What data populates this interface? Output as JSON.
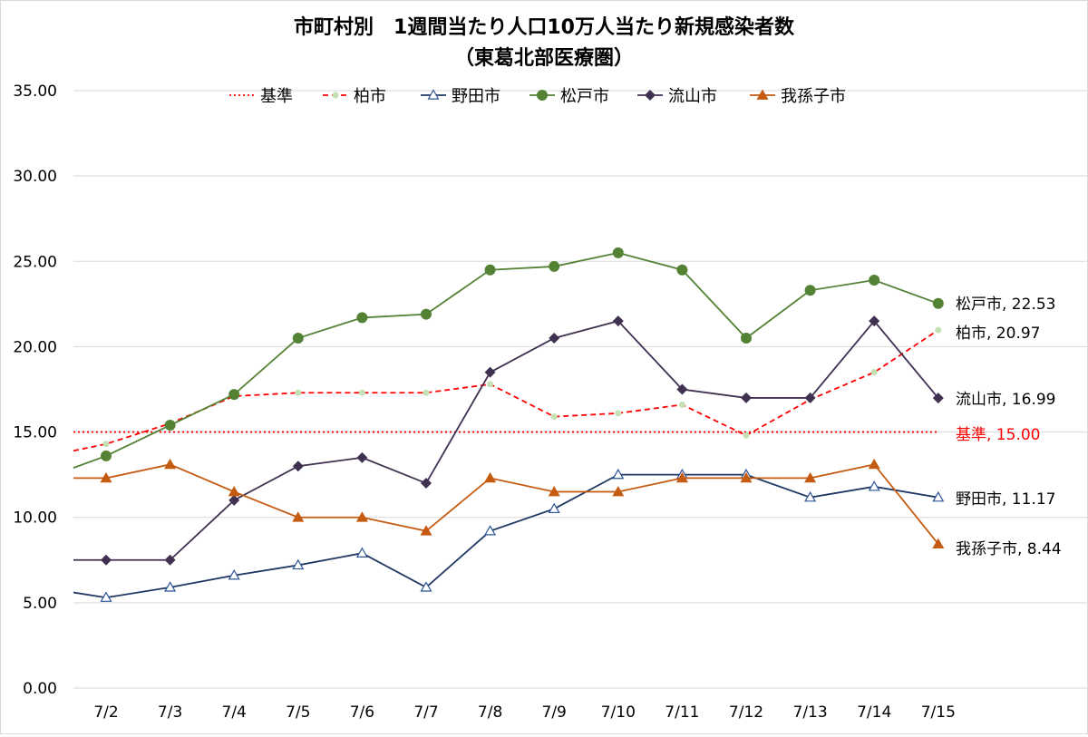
{
  "chart_data": {
    "type": "line",
    "title": "市町村別　1週間当たり人口10万人当たり新規感染者数",
    "subtitle": "（東葛北部医療圏）",
    "categories": [
      "7/2",
      "7/3",
      "7/4",
      "7/5",
      "7/6",
      "7/7",
      "7/8",
      "7/9",
      "7/10",
      "7/11",
      "7/12",
      "7/13",
      "7/14",
      "7/15"
    ],
    "y_ticks": [
      "0.00",
      "5.00",
      "10.00",
      "15.00",
      "20.00",
      "25.00",
      "30.00",
      "35.00"
    ],
    "ylim": [
      0,
      35
    ],
    "grid": true,
    "legend_position": "top",
    "series": [
      {
        "name": "基準",
        "style": "dotted",
        "marker": "none",
        "color": "#ff0000",
        "start": 15.0,
        "values": [
          15.0,
          15.0,
          15.0,
          15.0,
          15.0,
          15.0,
          15.0,
          15.0,
          15.0,
          15.0,
          15.0,
          15.0,
          15.0,
          15.0
        ],
        "end_label": "基準, 15.00"
      },
      {
        "name": "柏市",
        "style": "dashed",
        "marker": "circle-small",
        "color": "#ff0000",
        "marker_color": "#c5e0b4",
        "start": 13.9,
        "values": [
          14.3,
          15.5,
          17.1,
          17.3,
          17.3,
          17.3,
          17.8,
          15.9,
          16.1,
          16.6,
          14.8,
          16.9,
          18.5,
          20.97
        ],
        "end_label": "柏市, 20.97"
      },
      {
        "name": "野田市",
        "style": "solid",
        "marker": "triangle-open",
        "color": "#203864",
        "marker_color": "#2f5597",
        "start": 5.6,
        "values": [
          5.3,
          5.9,
          6.6,
          7.2,
          7.9,
          5.9,
          9.2,
          10.5,
          12.5,
          12.5,
          12.5,
          11.17,
          11.8,
          11.17
        ],
        "end_label": "野田市, 11.17"
      },
      {
        "name": "松戸市",
        "style": "solid",
        "marker": "circle",
        "color": "#548235",
        "marker_color": "#548235",
        "start": 12.9,
        "values": [
          13.6,
          15.4,
          17.2,
          20.5,
          21.7,
          21.9,
          24.5,
          24.7,
          25.5,
          24.5,
          20.5,
          23.3,
          23.9,
          22.53
        ],
        "end_label": "松戸市, 22.53"
      },
      {
        "name": "流山市",
        "style": "solid",
        "marker": "diamond",
        "color": "#403151",
        "marker_color": "#403151",
        "start": 7.5,
        "values": [
          7.5,
          7.5,
          11.0,
          13.0,
          13.5,
          12.0,
          18.5,
          20.5,
          21.5,
          17.5,
          17.0,
          17.0,
          21.5,
          16.99
        ],
        "end_label": "流山市, 16.99"
      },
      {
        "name": "我孫子市",
        "style": "solid",
        "marker": "triangle",
        "color": "#c55a11",
        "marker_color": "#c55a11",
        "start": 12.3,
        "values": [
          12.3,
          13.1,
          11.5,
          10.0,
          10.0,
          9.2,
          12.3,
          11.5,
          11.5,
          12.3,
          12.3,
          12.3,
          13.1,
          8.44
        ],
        "end_label": "我孫子市, 8.44"
      }
    ]
  }
}
